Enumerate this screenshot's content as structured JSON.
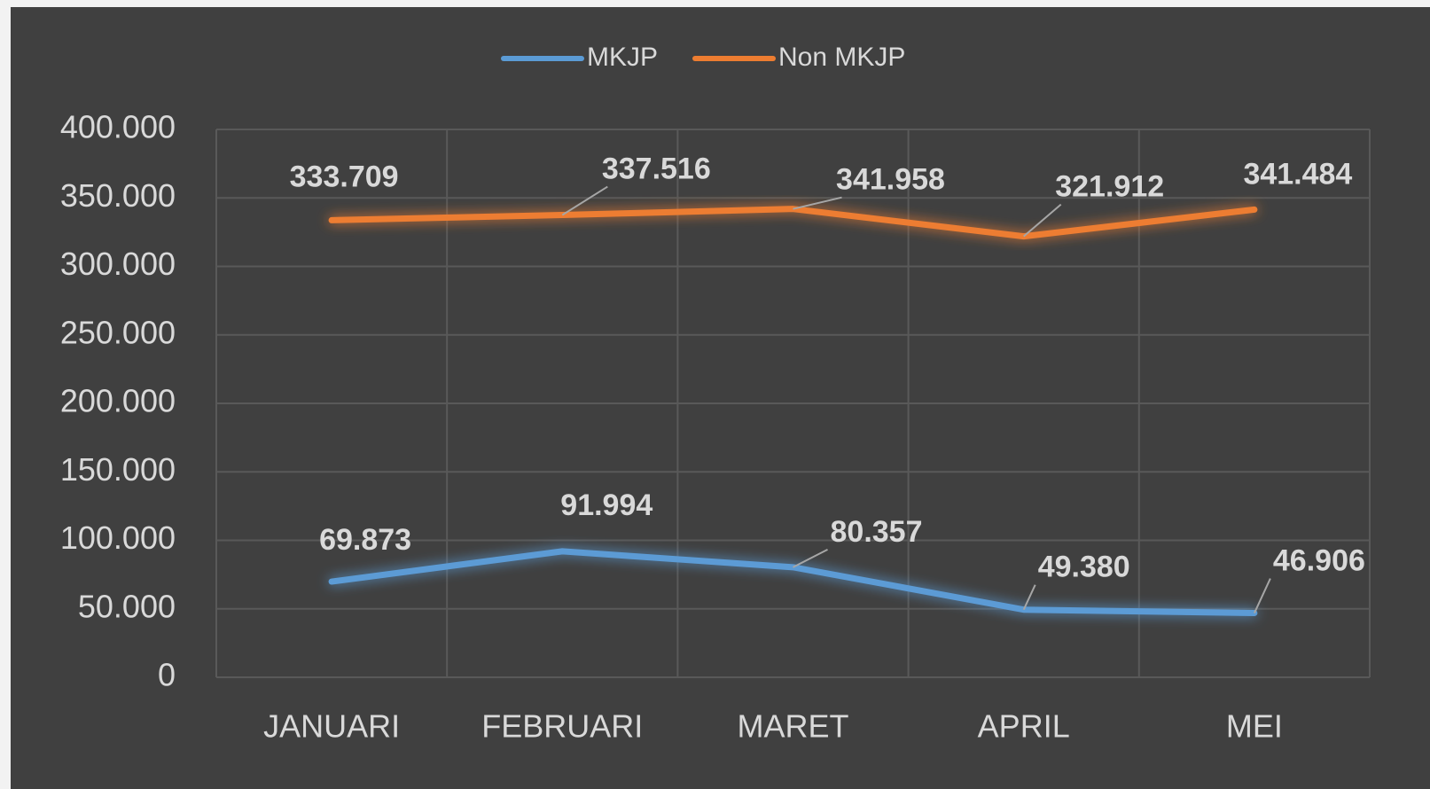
{
  "chart_data": {
    "type": "line",
    "categories": [
      "JANUARI",
      "FEBRUARI",
      "MARET",
      "APRIL",
      "MEI"
    ],
    "series": [
      {
        "name": "MKJP",
        "color": "#5b9bd5",
        "values": [
          69873,
          91994,
          80357,
          49380,
          46906
        ],
        "value_labels": [
          "69.873",
          "91.994",
          "80.357",
          "49.380",
          "46.906"
        ]
      },
      {
        "name": "Non MKJP",
        "color": "#ed7d31",
        "values": [
          333709,
          337516,
          341958,
          321912,
          341484
        ],
        "value_labels": [
          "333.709",
          "337.516",
          "341.958",
          "321.912",
          "341.484"
        ]
      }
    ],
    "ylim": [
      0,
      400000
    ],
    "yticks": [
      0,
      {
        "value": 50000,
        "label": "50.000"
      },
      {
        "value": 100000,
        "label": "100.000"
      },
      {
        "value": 150000,
        "label": "150.000"
      },
      {
        "value": 200000,
        "label": "200.000"
      },
      {
        "value": 250000,
        "label": "250.000"
      },
      {
        "value": 300000,
        "label": "300.000"
      },
      {
        "value": 350000,
        "label": "350.000"
      },
      {
        "value": 400000,
        "label": "400.000"
      }
    ],
    "grid": true,
    "legend": "top"
  }
}
